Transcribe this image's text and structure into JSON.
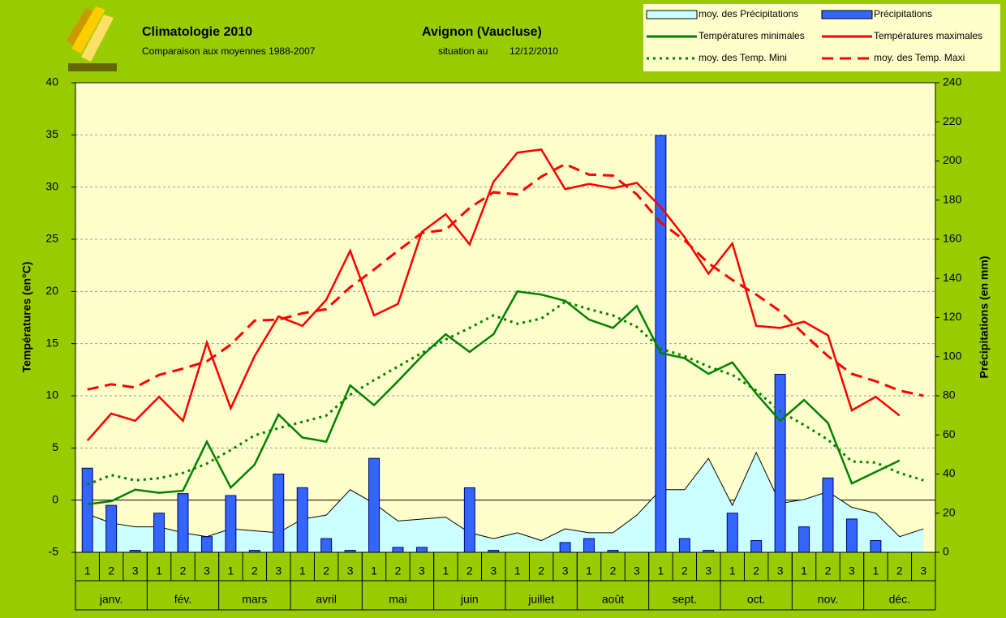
{
  "chart_data": {
    "type": "combo",
    "title": "Climatologie 2010",
    "subtitle": "Comparaison aux moyennes 1988-2007",
    "station": "Avignon (Vaucluse)",
    "situation_label": "situation au",
    "date": "12/12/2010",
    "ylabel": "Températures (en°C)",
    "y2label": "Précipitations (en mm)",
    "categories": [
      "1",
      "2",
      "3",
      "1",
      "2",
      "3",
      "1",
      "2",
      "3",
      "1",
      "2",
      "3",
      "1",
      "2",
      "3",
      "1",
      "2",
      "3",
      "1",
      "2",
      "3",
      "1",
      "2",
      "3",
      "1",
      "2",
      "3",
      "1",
      "2",
      "3",
      "1",
      "2",
      "3",
      "1",
      "2",
      "3"
    ],
    "months": [
      "janv.",
      "fév.",
      "mars",
      "avril",
      "mai",
      "juin",
      "juillet",
      "août",
      "sept.",
      "oct.",
      "nov.",
      "déc."
    ],
    "ylim": [
      -5,
      40
    ],
    "yticks": [
      -5,
      0,
      5,
      10,
      15,
      20,
      25,
      30,
      35,
      40
    ],
    "y2lim": [
      0,
      240
    ],
    "y2ticks": [
      0,
      20,
      40,
      60,
      80,
      100,
      120,
      140,
      160,
      180,
      200,
      220,
      240
    ],
    "grid": true,
    "legend": "top-right",
    "series": [
      {
        "name": "moy. des Précipitations",
        "kind": "area",
        "axis": "y2",
        "color": "#ccffff",
        "values": [
          19.5,
          15,
          13,
          13,
          10,
          8,
          12,
          11,
          10,
          17,
          19,
          32,
          25,
          16,
          17,
          18,
          10,
          7,
          10,
          6,
          12,
          10,
          10,
          19,
          32,
          32,
          48,
          24,
          51,
          25,
          27,
          31,
          23,
          20,
          8,
          12
        ]
      },
      {
        "name": "Précipitations",
        "kind": "bar",
        "axis": "y2",
        "color": "#3366ff",
        "values": [
          43,
          24,
          1,
          20,
          30,
          8,
          29,
          1,
          40,
          33,
          7,
          1,
          48,
          2.5,
          2.5,
          0,
          33,
          1,
          0,
          0,
          5,
          7,
          1,
          0,
          213,
          7,
          1,
          20,
          6,
          91,
          13,
          38,
          17,
          6,
          0,
          0
        ]
      },
      {
        "name": "Températures minimales",
        "kind": "line",
        "color": "#008000",
        "dash": "solid",
        "values": [
          -0.4,
          -0.1,
          1.0,
          0.7,
          0.9,
          5.6,
          1.2,
          3.4,
          8.2,
          6.0,
          5.6,
          11.0,
          9.1,
          11.4,
          13.8,
          15.9,
          14.2,
          15.9,
          20.0,
          19.7,
          19.1,
          17.3,
          16.5,
          18.6,
          14.1,
          13.6,
          12.1,
          13.2,
          10.2,
          7.6,
          9.6,
          7.4,
          1.6,
          2.7,
          3.8,
          null
        ]
      },
      {
        "name": "Températures maximales",
        "kind": "line",
        "color": "#ff0000",
        "dash": "solid",
        "values": [
          5.7,
          8.3,
          7.6,
          9.9,
          7.6,
          15.1,
          8.8,
          13.8,
          17.6,
          16.7,
          19.2,
          23.9,
          17.7,
          18.8,
          25.7,
          27.4,
          24.5,
          30.5,
          33.3,
          33.6,
          29.8,
          30.3,
          29.9,
          30.4,
          28.1,
          25.2,
          21.7,
          24.6,
          16.7,
          16.5,
          17.1,
          15.8,
          8.6,
          9.9,
          8.1,
          null
        ]
      },
      {
        "name": "moy. des Temp. Mini",
        "kind": "line",
        "color": "#008000",
        "dash": "dotted",
        "values": [
          1.5,
          2.4,
          1.9,
          2.1,
          2.6,
          3.5,
          4.8,
          6.2,
          6.9,
          7.5,
          8.1,
          10.1,
          11.5,
          12.8,
          14.1,
          15.4,
          16.5,
          17.7,
          16.9,
          17.4,
          19.0,
          18.3,
          17.7,
          16.6,
          14.5,
          13.8,
          12.8,
          12.0,
          10.5,
          8.5,
          7.2,
          5.8,
          3.7,
          3.6,
          2.6,
          1.9
        ]
      },
      {
        "name": "moy. des Temp. Maxi",
        "kind": "line",
        "color": "#ff0000",
        "dash": "dashed",
        "values": [
          10.6,
          11.1,
          10.8,
          12.0,
          12.6,
          13.3,
          14.9,
          17.2,
          17.3,
          17.9,
          18.3,
          20.4,
          22.1,
          23.9,
          25.6,
          25.9,
          28.0,
          29.5,
          29.3,
          31.0,
          32.2,
          31.2,
          31.1,
          29.3,
          26.6,
          24.9,
          22.7,
          21.1,
          19.7,
          18.1,
          15.9,
          13.8,
          12.1,
          11.4,
          10.5,
          10.0
        ]
      }
    ]
  }
}
